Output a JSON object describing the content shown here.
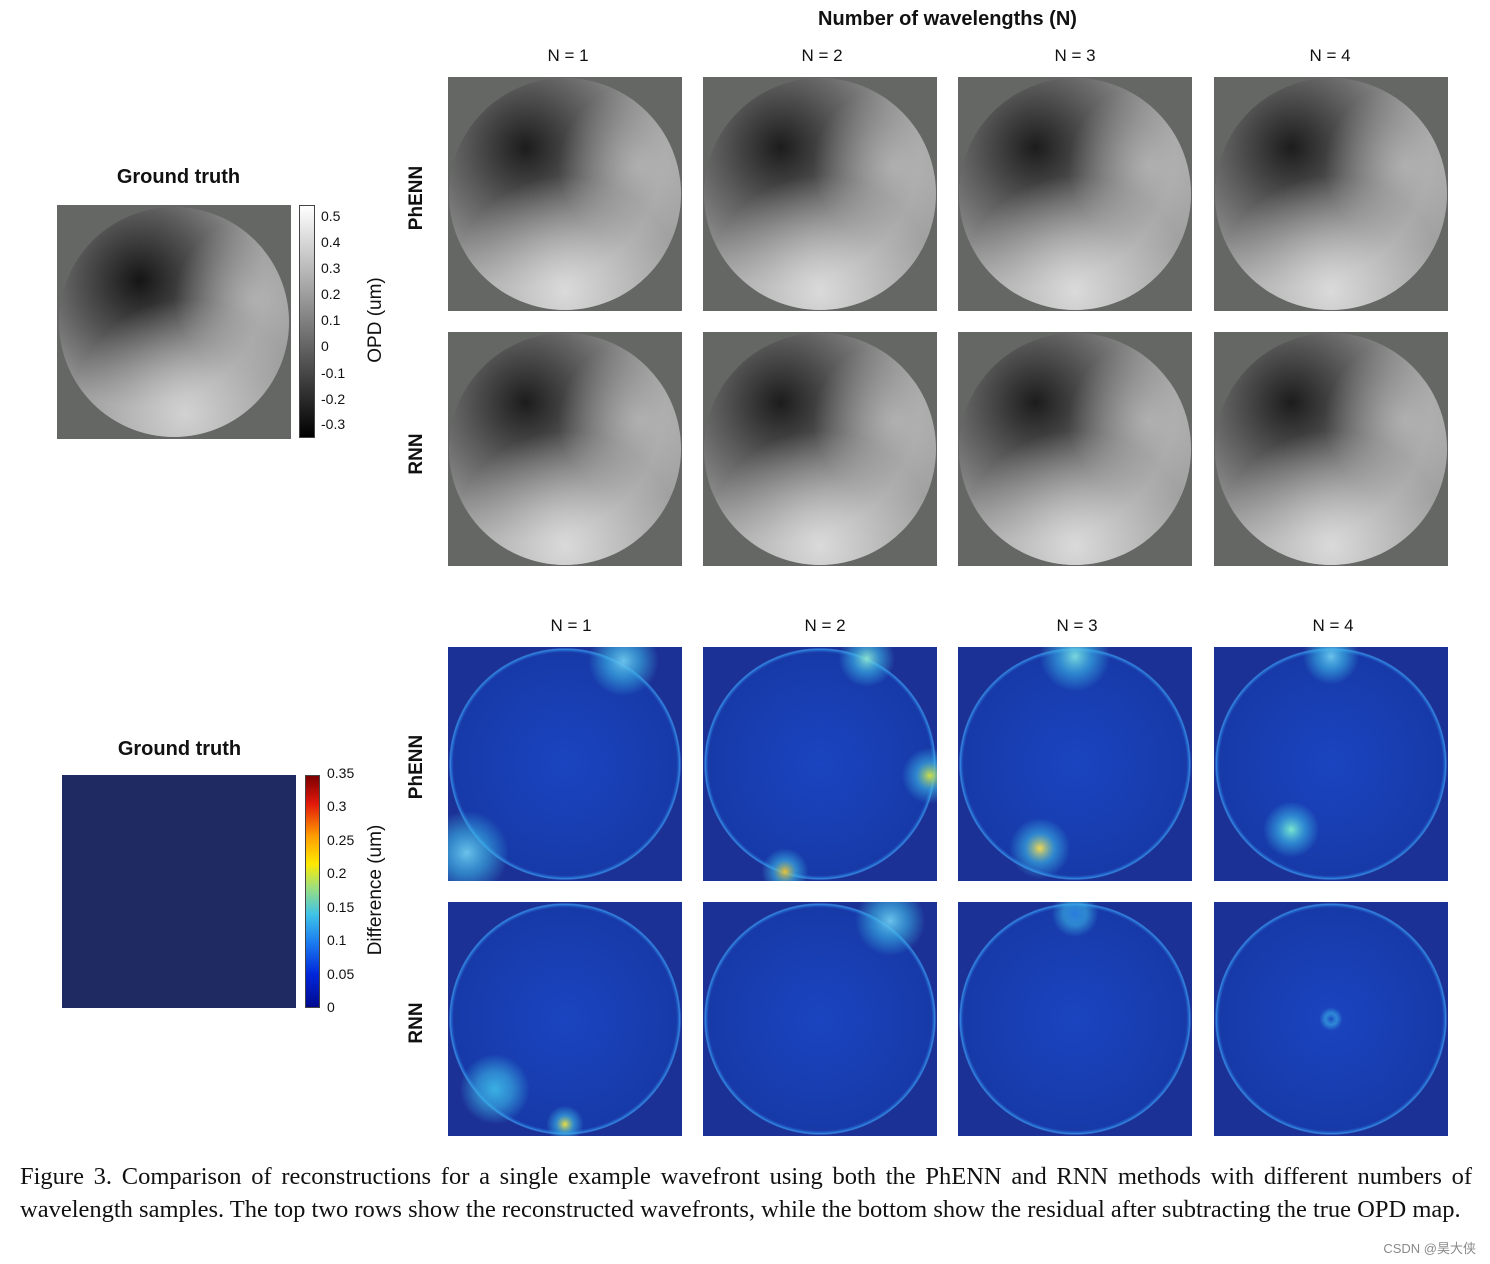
{
  "header_title": "Number of wavelengths (N)",
  "columns": [
    "N = 1",
    "N = 2",
    "N = 3",
    "N = 4"
  ],
  "rows": [
    "PhENN",
    "RNN"
  ],
  "opd_section": {
    "gt_title": "Ground truth",
    "colorbar_label": "OPD (um)",
    "colorbar_ticks": [
      "0.5",
      "0.4",
      "0.3",
      "0.2",
      "0.1",
      "0",
      "-0.1",
      "-0.2",
      "-0.3"
    ]
  },
  "diff_section": {
    "gt_title": "Ground truth",
    "colorbar_label": "Difference (um)",
    "colorbar_ticks": [
      "0.35",
      "0.3",
      "0.25",
      "0.2",
      "0.15",
      "0.1",
      "0.05",
      "0"
    ]
  },
  "caption": "Figure 3.  Comparison of reconstructions for a single example wavefront using both the PhENN and RNN methods with different numbers of wavelength samples. The top two rows show the reconstructed wavefronts, while the bottom show the residual after subtracting the true OPD map.",
  "watermark": "CSDN @昊大侠",
  "colors": {
    "gray_background": "#656765",
    "diff_background": "#1c3196",
    "ground_truth_diff": "#1f2a63"
  }
}
